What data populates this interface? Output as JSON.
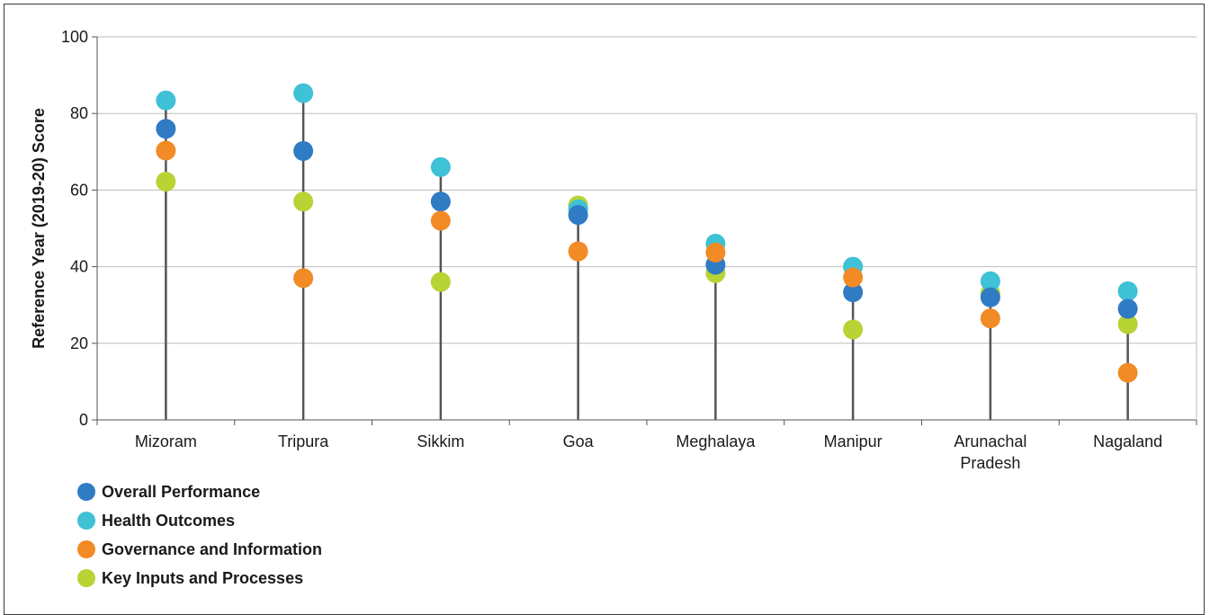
{
  "chart_data": {
    "type": "scatter",
    "subtype": "dot-plot-with-stems",
    "title": "",
    "xlabel": "",
    "ylabel": "Reference Year (2019-20) Score",
    "ylim": [
      0,
      100
    ],
    "yticks": [
      0,
      20,
      40,
      60,
      80,
      100
    ],
    "grid": true,
    "legend_position": "bottom-left",
    "categories": [
      "Mizoram",
      "Tripura",
      "Sikkim",
      "Goa",
      "Meghalaya",
      "Manipur",
      "Arunachal Pradesh",
      "Nagaland"
    ],
    "series": [
      {
        "name": "Overall Performance",
        "color": "#2f7bc4",
        "values": [
          76.0,
          70.2,
          57.0,
          53.5,
          40.5,
          33.3,
          32.0,
          29.0
        ]
      },
      {
        "name": "Health Outcomes",
        "color": "#3fc1d6",
        "values": [
          83.4,
          85.3,
          66.0,
          55.0,
          46.0,
          40.0,
          36.2,
          33.6
        ]
      },
      {
        "name": "Governance and Information",
        "color": "#f28a26",
        "values": [
          70.3,
          37.0,
          52.0,
          44.0,
          43.7,
          37.2,
          26.5,
          12.3
        ]
      },
      {
        "name": "Key Inputs and Processes",
        "color": "#b7d334",
        "values": [
          62.2,
          57.0,
          36.0,
          56.0,
          38.3,
          23.6,
          33.0,
          25.0
        ]
      }
    ]
  }
}
